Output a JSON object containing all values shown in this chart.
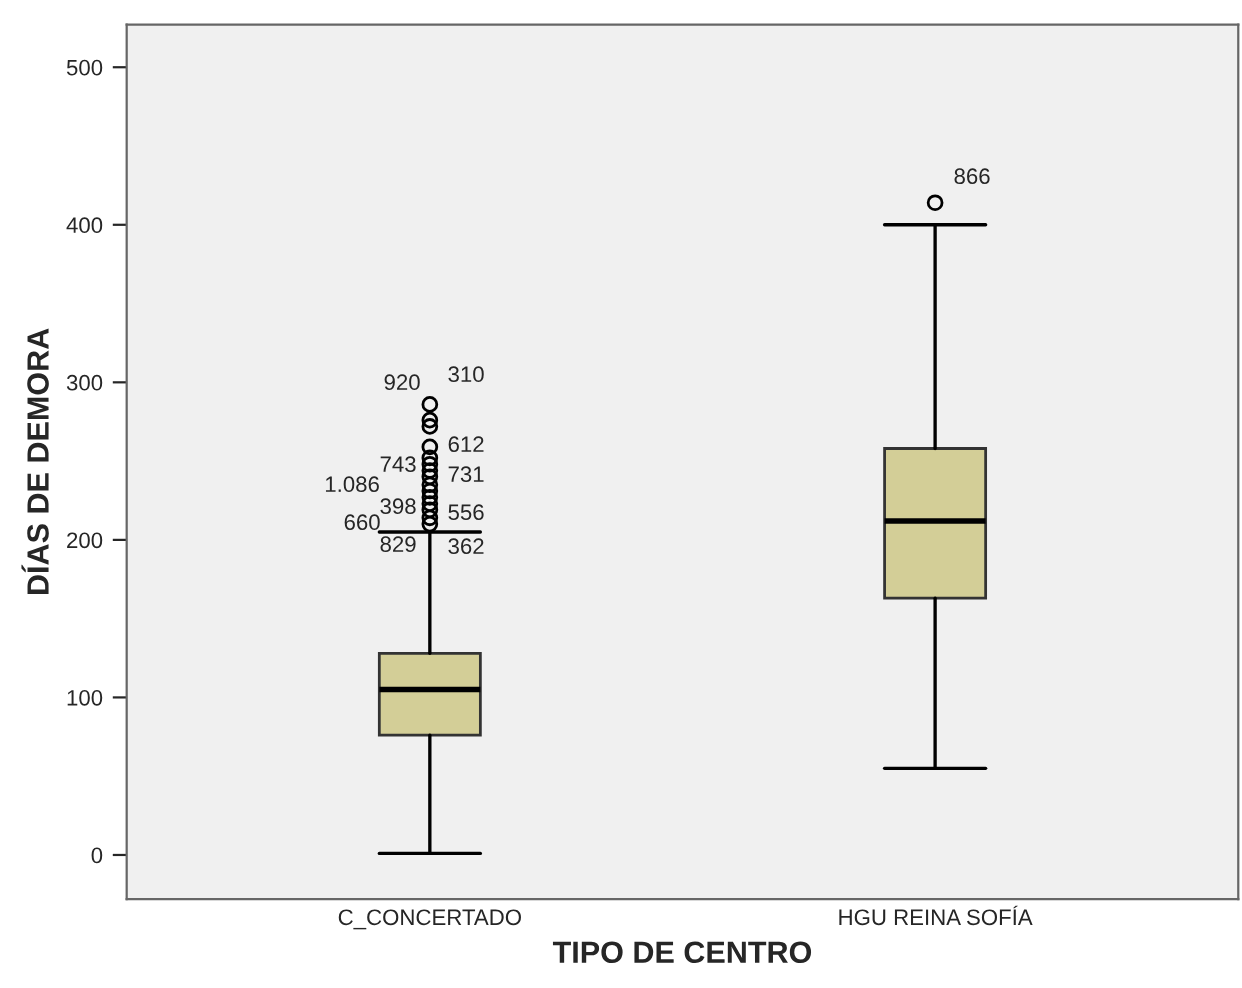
{
  "chart_data": {
    "type": "box",
    "xlabel": "TIPO DE CENTRO",
    "ylabel": "DÍAS DE DEMORA",
    "categories": [
      "C_CONCERTADO",
      "HGU REINA SOFÍA"
    ],
    "boxes": [
      {
        "low": 1,
        "q1": 76,
        "median": 105,
        "q3": 128,
        "high": 205,
        "outliers": [
          210,
          214,
          219,
          223,
          227,
          231,
          235,
          240,
          244,
          248,
          252,
          259,
          272,
          276,
          286
        ]
      },
      {
        "low": 55,
        "q1": 163,
        "median": 212,
        "q3": 258,
        "high": 400,
        "outliers": [
          414
        ]
      }
    ],
    "color": "#d3ce97",
    "ylim": [
      -28,
      527
    ],
    "yticks": [
      0,
      100,
      200,
      300,
      400,
      500
    ],
    "annotations": [
      "920",
      "310",
      "612",
      "743",
      "731",
      "1.086",
      "398",
      "556",
      "660",
      "829",
      "362",
      "866"
    ],
    "grid": false
  }
}
